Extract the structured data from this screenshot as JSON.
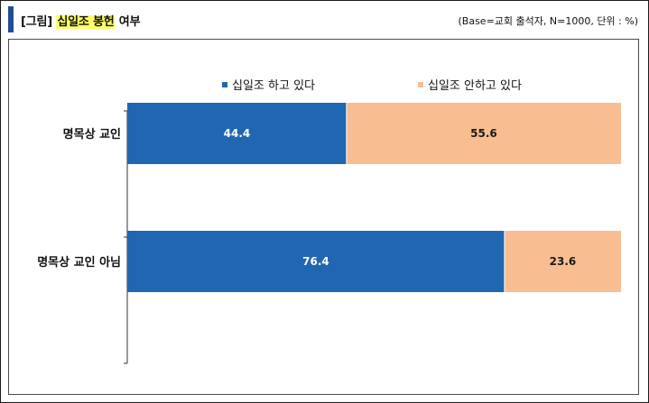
{
  "header": {
    "bracket": "[그림]",
    "highlight": "십일조 봉헌",
    "suffix": " 여부",
    "base_note": "(Base=교회 출석자, N=1000, 단위 : %)"
  },
  "colors": {
    "series1": "#2166b0",
    "series2": "#f8be92",
    "accent": "#1f4e96",
    "highlight": "#ffff66"
  },
  "chart_data": {
    "type": "bar",
    "orientation": "horizontal",
    "stacked": true,
    "categories": [
      "명목상 교인",
      "명목상 교인 아님"
    ],
    "series": [
      {
        "name": "십일조 하고 있다",
        "values": [
          44.4,
          76.4
        ]
      },
      {
        "name": "십일조 안하고 있다",
        "values": [
          55.6,
          23.6
        ]
      }
    ],
    "xlim": [
      0,
      100
    ],
    "unit": "%",
    "legend_position": "top",
    "grid": false
  }
}
